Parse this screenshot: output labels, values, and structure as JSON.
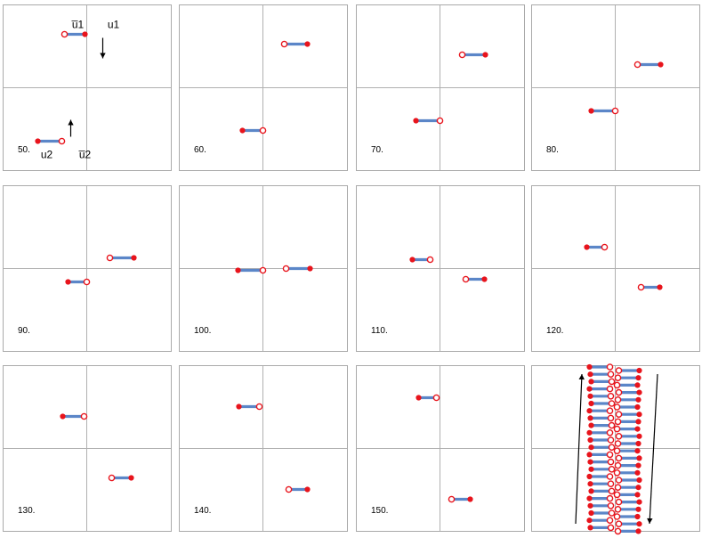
{
  "figure": {
    "panels": [
      {
        "step": "50.",
        "pair_top": {
          "left": [
            -0.87,
            -1.68
          ],
          "right": [
            -0.5,
            -1.68
          ]
        },
        "pair_bottom": {
          "left": [
            -1.31,
            -2.74
          ],
          "right": [
            -0.95,
            -2.74
          ]
        }
      },
      {
        "step": "60.",
        "pair_top": {
          "left": [
            0.07,
            -1.9
          ],
          "right": [
            0.45,
            -1.9
          ]
        },
        "pair_bottom": {
          "left": [
            -0.49,
            -2.45
          ],
          "right": [
            -0.11,
            -2.45
          ]
        }
      },
      {
        "step": "70.",
        "pair_top": {
          "left": [
            0.12,
            -2.13
          ],
          "right": [
            0.5,
            -2.13
          ]
        },
        "pair_bottom": {
          "left": [
            -0.54,
            -2.35
          ],
          "right": [
            -0.16,
            -2.35
          ]
        }
      },
      {
        "step": "80.",
        "pair_top": {
          "left": [
            0.1,
            -2.3
          ],
          "right": [
            0.48,
            -2.3
          ]
        },
        "pair_bottom": {
          "left": [
            -0.58,
            -2.49
          ],
          "right": [
            -0.2,
            -2.49
          ]
        }
      },
      {
        "step": "90.",
        "pair_top": {
          "left": [
            0.14,
            -2.01
          ],
          "right": [
            0.52,
            -2.01
          ]
        },
        "pair_bottom": {
          "left": [
            -0.5,
            -2.47
          ],
          "right": [
            -0.12,
            -2.47
          ]
        }
      },
      {
        "step": "100.",
        "pair_top": {
          "left": [
            0.12,
            -2.22
          ],
          "right": [
            0.5,
            -2.22
          ]
        },
        "pair_bottom": {
          "left": [
            -0.58,
            -2.24
          ],
          "right": [
            -0.2,
            -2.24
          ]
        }
      },
      {
        "step": "110.",
        "pair_top": {
          "left": [
            -0.54,
            -2.0
          ],
          "right": [
            -0.16,
            -2.0
          ]
        },
        "pair_bottom": {
          "left": [
            0.1,
            -2.22
          ],
          "right": [
            0.48,
            -2.22
          ]
        }
      },
      {
        "step": "120.",
        "pair_top": {
          "left": [
            -0.56,
            -1.97
          ],
          "right": [
            -0.18,
            -1.97
          ]
        },
        "pair_bottom": {
          "left": [
            0.05,
            -2.42
          ],
          "right": [
            0.43,
            -2.42
          ]
        }
      },
      {
        "step": "130.",
        "pair_top": {
          "left": [
            -0.56,
            -1.99
          ],
          "right": [
            -0.18,
            -1.99
          ]
        },
        "pair_bottom": {
          "left": [
            0.08,
            -2.67
          ],
          "right": [
            0.46,
            -2.67
          ]
        }
      },
      {
        "step": "140.",
        "pair_top": {
          "left": [
            -0.56,
            -1.92
          ],
          "right": [
            -0.18,
            -1.92
          ]
        },
        "pair_bottom": {
          "left": [
            0.06,
            -2.78
          ],
          "right": [
            0.44,
            -2.78
          ]
        }
      },
      {
        "step": "150.",
        "pair_top": {
          "left": [
            -0.51,
            -1.79
          ],
          "right": [
            -0.13,
            -1.79
          ]
        },
        "pair_bottom": {
          "left": [
            0.12,
            -3.0
          ],
          "right": [
            0.5,
            -3.0
          ]
        }
      },
      {
        "step": "",
        "trace": true
      }
    ],
    "first_panel_labels": {
      "u1_bar": "u̅1",
      "u1": "u1",
      "u2": "u2",
      "u2_bar": "u̅2"
    },
    "colors": {
      "frame": "#aaaaaa",
      "axis": "#b0b0b0",
      "filled_dot": "#e8141c",
      "open_dot_stroke": "#e8141c",
      "open_dot_fill": "#ffffff",
      "link": "#5b86c8",
      "arrow": "#000000",
      "text": "#000000"
    }
  }
}
